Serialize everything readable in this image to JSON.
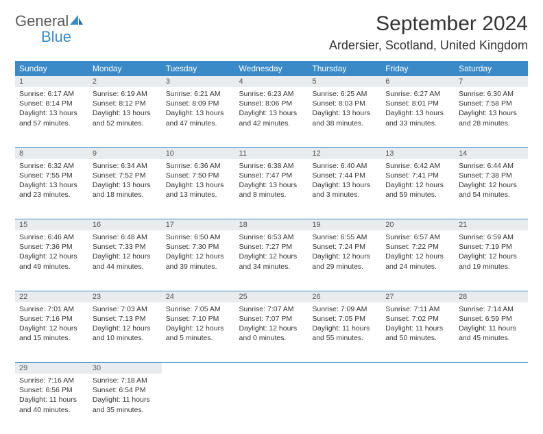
{
  "brand": {
    "general": "General",
    "blue": "Blue"
  },
  "title": "September 2024",
  "location": "Ardersier, Scotland, United Kingdom",
  "colors": {
    "accent": "#3a8ac8",
    "header_bg": "#3a8ac8",
    "daynum_bg": "#e8ecef",
    "text": "#333333"
  },
  "weekdays": [
    "Sunday",
    "Monday",
    "Tuesday",
    "Wednesday",
    "Thursday",
    "Friday",
    "Saturday"
  ],
  "weeks": [
    [
      {
        "n": "1",
        "sr": "Sunrise: 6:17 AM",
        "ss": "Sunset: 8:14 PM",
        "dl": "Daylight: 13 hours and 57 minutes."
      },
      {
        "n": "2",
        "sr": "Sunrise: 6:19 AM",
        "ss": "Sunset: 8:12 PM",
        "dl": "Daylight: 13 hours and 52 minutes."
      },
      {
        "n": "3",
        "sr": "Sunrise: 6:21 AM",
        "ss": "Sunset: 8:09 PM",
        "dl": "Daylight: 13 hours and 47 minutes."
      },
      {
        "n": "4",
        "sr": "Sunrise: 6:23 AM",
        "ss": "Sunset: 8:06 PM",
        "dl": "Daylight: 13 hours and 42 minutes."
      },
      {
        "n": "5",
        "sr": "Sunrise: 6:25 AM",
        "ss": "Sunset: 8:03 PM",
        "dl": "Daylight: 13 hours and 38 minutes."
      },
      {
        "n": "6",
        "sr": "Sunrise: 6:27 AM",
        "ss": "Sunset: 8:01 PM",
        "dl": "Daylight: 13 hours and 33 minutes."
      },
      {
        "n": "7",
        "sr": "Sunrise: 6:30 AM",
        "ss": "Sunset: 7:58 PM",
        "dl": "Daylight: 13 hours and 28 minutes."
      }
    ],
    [
      {
        "n": "8",
        "sr": "Sunrise: 6:32 AM",
        "ss": "Sunset: 7:55 PM",
        "dl": "Daylight: 13 hours and 23 minutes."
      },
      {
        "n": "9",
        "sr": "Sunrise: 6:34 AM",
        "ss": "Sunset: 7:52 PM",
        "dl": "Daylight: 13 hours and 18 minutes."
      },
      {
        "n": "10",
        "sr": "Sunrise: 6:36 AM",
        "ss": "Sunset: 7:50 PM",
        "dl": "Daylight: 13 hours and 13 minutes."
      },
      {
        "n": "11",
        "sr": "Sunrise: 6:38 AM",
        "ss": "Sunset: 7:47 PM",
        "dl": "Daylight: 13 hours and 8 minutes."
      },
      {
        "n": "12",
        "sr": "Sunrise: 6:40 AM",
        "ss": "Sunset: 7:44 PM",
        "dl": "Daylight: 13 hours and 3 minutes."
      },
      {
        "n": "13",
        "sr": "Sunrise: 6:42 AM",
        "ss": "Sunset: 7:41 PM",
        "dl": "Daylight: 12 hours and 59 minutes."
      },
      {
        "n": "14",
        "sr": "Sunrise: 6:44 AM",
        "ss": "Sunset: 7:38 PM",
        "dl": "Daylight: 12 hours and 54 minutes."
      }
    ],
    [
      {
        "n": "15",
        "sr": "Sunrise: 6:46 AM",
        "ss": "Sunset: 7:36 PM",
        "dl": "Daylight: 12 hours and 49 minutes."
      },
      {
        "n": "16",
        "sr": "Sunrise: 6:48 AM",
        "ss": "Sunset: 7:33 PM",
        "dl": "Daylight: 12 hours and 44 minutes."
      },
      {
        "n": "17",
        "sr": "Sunrise: 6:50 AM",
        "ss": "Sunset: 7:30 PM",
        "dl": "Daylight: 12 hours and 39 minutes."
      },
      {
        "n": "18",
        "sr": "Sunrise: 6:53 AM",
        "ss": "Sunset: 7:27 PM",
        "dl": "Daylight: 12 hours and 34 minutes."
      },
      {
        "n": "19",
        "sr": "Sunrise: 6:55 AM",
        "ss": "Sunset: 7:24 PM",
        "dl": "Daylight: 12 hours and 29 minutes."
      },
      {
        "n": "20",
        "sr": "Sunrise: 6:57 AM",
        "ss": "Sunset: 7:22 PM",
        "dl": "Daylight: 12 hours and 24 minutes."
      },
      {
        "n": "21",
        "sr": "Sunrise: 6:59 AM",
        "ss": "Sunset: 7:19 PM",
        "dl": "Daylight: 12 hours and 19 minutes."
      }
    ],
    [
      {
        "n": "22",
        "sr": "Sunrise: 7:01 AM",
        "ss": "Sunset: 7:16 PM",
        "dl": "Daylight: 12 hours and 15 minutes."
      },
      {
        "n": "23",
        "sr": "Sunrise: 7:03 AM",
        "ss": "Sunset: 7:13 PM",
        "dl": "Daylight: 12 hours and 10 minutes."
      },
      {
        "n": "24",
        "sr": "Sunrise: 7:05 AM",
        "ss": "Sunset: 7:10 PM",
        "dl": "Daylight: 12 hours and 5 minutes."
      },
      {
        "n": "25",
        "sr": "Sunrise: 7:07 AM",
        "ss": "Sunset: 7:07 PM",
        "dl": "Daylight: 12 hours and 0 minutes."
      },
      {
        "n": "26",
        "sr": "Sunrise: 7:09 AM",
        "ss": "Sunset: 7:05 PM",
        "dl": "Daylight: 11 hours and 55 minutes."
      },
      {
        "n": "27",
        "sr": "Sunrise: 7:11 AM",
        "ss": "Sunset: 7:02 PM",
        "dl": "Daylight: 11 hours and 50 minutes."
      },
      {
        "n": "28",
        "sr": "Sunrise: 7:14 AM",
        "ss": "Sunset: 6:59 PM",
        "dl": "Daylight: 11 hours and 45 minutes."
      }
    ],
    [
      {
        "n": "29",
        "sr": "Sunrise: 7:16 AM",
        "ss": "Sunset: 6:56 PM",
        "dl": "Daylight: 11 hours and 40 minutes."
      },
      {
        "n": "30",
        "sr": "Sunrise: 7:18 AM",
        "ss": "Sunset: 6:54 PM",
        "dl": "Daylight: 11 hours and 35 minutes."
      },
      null,
      null,
      null,
      null,
      null
    ]
  ]
}
